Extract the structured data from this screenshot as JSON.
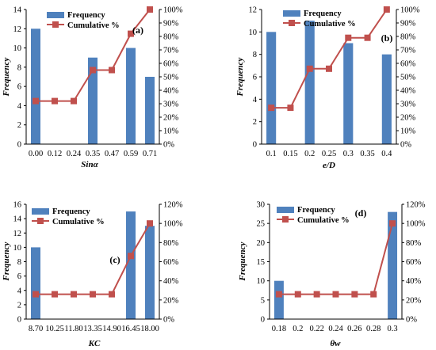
{
  "colors": {
    "bar": "#4f81bd",
    "line": "#c0504d",
    "axis": "#000000"
  },
  "chart_data": [
    {
      "type": "bar",
      "panel_label": "(a)",
      "categories": [
        "0.00",
        "0.12",
        "0.24",
        "0.35",
        "0.47",
        "0.59",
        "0.71"
      ],
      "series": [
        {
          "name": "Frequency",
          "type": "bar",
          "axis": "left",
          "values": [
            12,
            null,
            null,
            9,
            null,
            10,
            7
          ]
        },
        {
          "name": "Cumulative %",
          "type": "line",
          "axis": "right",
          "values": [
            32,
            32,
            32,
            55,
            55,
            82,
            100
          ]
        }
      ],
      "xlabel": "Sinα",
      "ylabel": "Frequency",
      "ylim": [
        0,
        14
      ],
      "yticks": [
        "0",
        "2",
        "4",
        "6",
        "8",
        "10",
        "12",
        "14"
      ],
      "y2lim": [
        0,
        100
      ],
      "y2ticks": [
        "0%",
        "10%",
        "20%",
        "30%",
        "40%",
        "50%",
        "60%",
        "70%",
        "80%",
        "90%",
        "100%"
      ],
      "legend": "top-center"
    },
    {
      "type": "bar",
      "panel_label": "(b)",
      "categories": [
        "0.1",
        "0.15",
        "0.2",
        "0.25",
        "0.3",
        "0.35",
        "0.4"
      ],
      "series": [
        {
          "name": "Frequency",
          "type": "bar",
          "axis": "left",
          "values": [
            10,
            null,
            11,
            null,
            9,
            null,
            8
          ]
        },
        {
          "name": "Cumulative %",
          "type": "line",
          "axis": "right",
          "values": [
            27,
            27,
            56,
            56,
            79,
            79,
            100
          ]
        }
      ],
      "xlabel": "e/D",
      "ylabel": "Frequency",
      "ylim": [
        0,
        12
      ],
      "yticks": [
        "0",
        "2",
        "4",
        "6",
        "8",
        "10",
        "12"
      ],
      "y2lim": [
        0,
        100
      ],
      "y2ticks": [
        "0%",
        "10%",
        "20%",
        "30%",
        "40%",
        "50%",
        "60%",
        "70%",
        "80%",
        "90%",
        "100%"
      ],
      "legend": "top-center"
    },
    {
      "type": "bar",
      "panel_label": "(c)",
      "categories": [
        "8.70",
        "10.25",
        "11.80",
        "13.35",
        "14.90",
        "16.45",
        "18.00"
      ],
      "series": [
        {
          "name": "Frequency",
          "type": "bar",
          "axis": "left",
          "values": [
            10,
            null,
            null,
            null,
            null,
            15,
            13
          ]
        },
        {
          "name": "Cumulative %",
          "type": "line",
          "axis": "right",
          "values": [
            26,
            26,
            26,
            26,
            26,
            66,
            100
          ]
        }
      ],
      "xlabel": "KC",
      "ylabel": "Frequency",
      "ylim": [
        0,
        16
      ],
      "yticks": [
        "0",
        "2",
        "4",
        "6",
        "8",
        "10",
        "12",
        "14",
        "16"
      ],
      "y2lim": [
        0,
        120
      ],
      "y2ticks": [
        "0%",
        "20%",
        "40%",
        "60%",
        "80%",
        "100%",
        "120%"
      ],
      "legend": "top-center"
    },
    {
      "type": "bar",
      "panel_label": "(d)",
      "categories": [
        "0.18",
        "0.2",
        "0.22",
        "0.24",
        "0.26",
        "0.28",
        "0.3"
      ],
      "series": [
        {
          "name": "Frequency",
          "type": "bar",
          "axis": "left",
          "values": [
            10,
            null,
            null,
            null,
            null,
            null,
            28
          ]
        },
        {
          "name": "Cumulative %",
          "type": "line",
          "axis": "right",
          "values": [
            26,
            26,
            26,
            26,
            26,
            26,
            100
          ]
        }
      ],
      "xlabel": "θw",
      "ylabel": "Frequency",
      "ylim": [
        0,
        30
      ],
      "yticks": [
        "0",
        "5",
        "10",
        "15",
        "20",
        "25",
        "30"
      ],
      "y2lim": [
        0,
        120
      ],
      "y2ticks": [
        "0%",
        "20%",
        "40%",
        "60%",
        "80%",
        "100%",
        "120%"
      ],
      "legend": "top-center"
    }
  ]
}
